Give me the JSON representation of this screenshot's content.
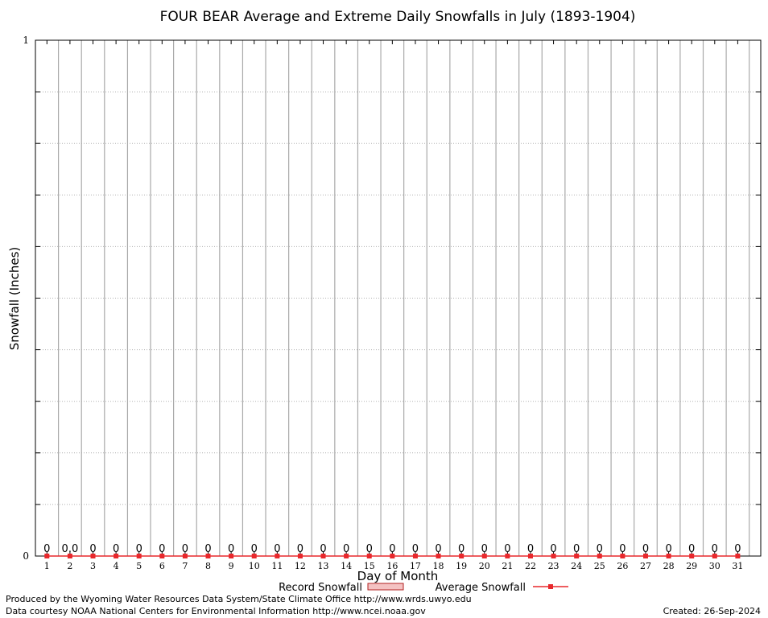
{
  "chart_data": {
    "type": "bar",
    "title": "FOUR BEAR Average and Extreme Daily Snowfalls in July (1893-1904)",
    "xlabel": "Day of Month",
    "ylabel": "Snowfall (Inches)",
    "ylim": [
      0,
      1
    ],
    "y_tick_labels": [
      "0",
      "1"
    ],
    "grid": true,
    "legend_position": "bottom",
    "categories": [
      "1",
      "2",
      "3",
      "4",
      "5",
      "6",
      "7",
      "8",
      "9",
      "10",
      "11",
      "12",
      "13",
      "14",
      "15",
      "16",
      "17",
      "18",
      "19",
      "20",
      "21",
      "22",
      "23",
      "24",
      "25",
      "26",
      "27",
      "28",
      "29",
      "30",
      "31"
    ],
    "bar_labels": [
      "0",
      "0.0",
      "0",
      "0",
      "0",
      "0",
      "0",
      "0",
      "0",
      "0",
      "0",
      "0",
      "0",
      "0",
      "0",
      "0",
      "0",
      "0",
      "0",
      "0",
      "0",
      "0",
      "0",
      "0",
      "0",
      "0",
      "0",
      "0",
      "0",
      "0",
      "0"
    ],
    "series": [
      {
        "name": "Record Snowfall",
        "kind": "bar",
        "color": "#b22222",
        "values": [
          0,
          0,
          0,
          0,
          0,
          0,
          0,
          0,
          0,
          0,
          0,
          0,
          0,
          0,
          0,
          0,
          0,
          0,
          0,
          0,
          0,
          0,
          0,
          0,
          0,
          0,
          0,
          0,
          0,
          0,
          0
        ]
      },
      {
        "name": "Average Snowfall",
        "kind": "line",
        "color": "#e8282c",
        "values": [
          0,
          0,
          0,
          0,
          0,
          0,
          0,
          0,
          0,
          0,
          0,
          0,
          0,
          0,
          0,
          0,
          0,
          0,
          0,
          0,
          0,
          0,
          0,
          0,
          0,
          0,
          0,
          0,
          0,
          0,
          0
        ]
      }
    ]
  },
  "footer": {
    "producer": "Produced by the Wyoming Water Resources Data System/State Climate Office http://www.wrds.uwyo.edu",
    "courtesy": "Data courtesy NOAA National Centers for Environmental Information http://www.ncei.noaa.gov",
    "created": "Created:  26-Sep-2024"
  }
}
